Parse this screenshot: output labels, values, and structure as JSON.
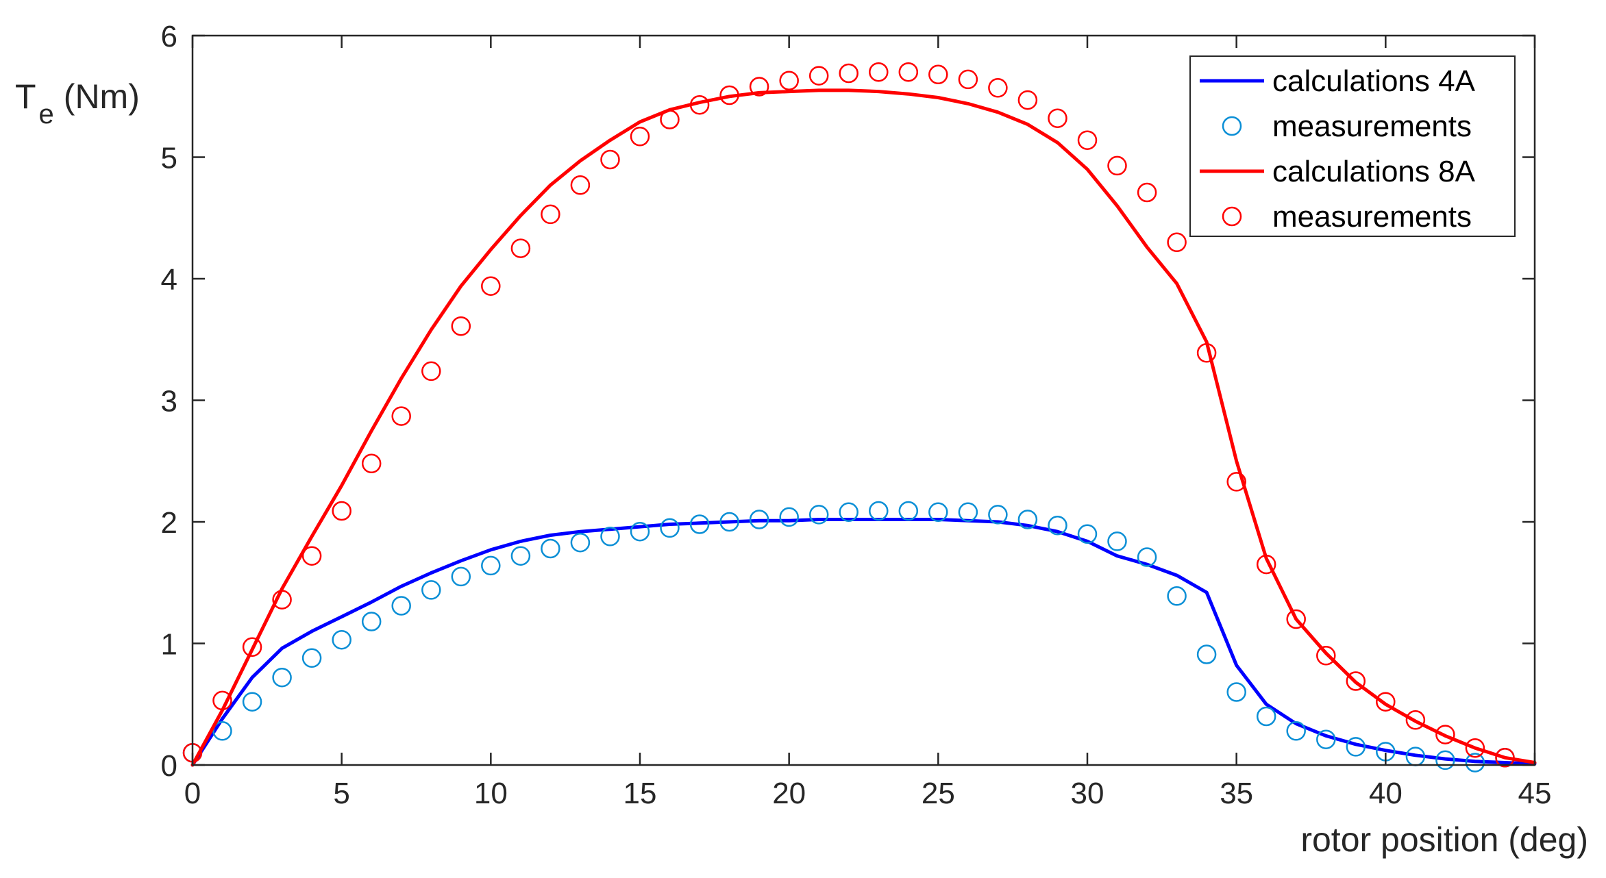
{
  "chart_data": {
    "type": "line",
    "xlabel": "rotor position (deg)",
    "ylabel_main": "T",
    "ylabel_sub": "e",
    "ylabel_unit": "(Nm)",
    "xlim": [
      0,
      45
    ],
    "ylim": [
      0,
      6
    ],
    "xticks": [
      0,
      5,
      10,
      15,
      20,
      25,
      30,
      35,
      40,
      45
    ],
    "yticks": [
      0,
      1,
      2,
      3,
      4,
      5,
      6
    ],
    "grid": false,
    "legend_position": "top-right",
    "series": [
      {
        "name": "calculations 4A",
        "style": "line",
        "color": "#0000ff",
        "x": [
          0,
          1,
          2,
          3,
          4,
          5,
          6,
          7,
          8,
          9,
          10,
          11,
          12,
          13,
          14,
          15,
          16,
          17,
          18,
          19,
          20,
          21,
          22,
          23,
          24,
          25,
          26,
          27,
          28,
          29,
          30,
          31,
          32,
          33,
          34,
          35,
          36,
          37,
          38,
          39,
          40,
          41,
          42,
          43,
          44,
          45
        ],
        "y": [
          0.0,
          0.38,
          0.72,
          0.96,
          1.1,
          1.22,
          1.34,
          1.47,
          1.58,
          1.68,
          1.77,
          1.84,
          1.89,
          1.92,
          1.94,
          1.96,
          1.98,
          1.99,
          2.0,
          2.01,
          2.01,
          2.02,
          2.02,
          2.02,
          2.02,
          2.02,
          2.01,
          2.0,
          1.97,
          1.92,
          1.84,
          1.72,
          1.65,
          1.56,
          1.42,
          0.82,
          0.5,
          0.34,
          0.24,
          0.17,
          0.12,
          0.08,
          0.05,
          0.03,
          0.02,
          0.01
        ]
      },
      {
        "name": "measurements",
        "style": "markers",
        "color": "#0b8fd6",
        "x": [
          0,
          1,
          2,
          3,
          4,
          5,
          6,
          7,
          8,
          9,
          10,
          11,
          12,
          13,
          14,
          15,
          16,
          17,
          18,
          19,
          20,
          21,
          22,
          23,
          24,
          25,
          26,
          27,
          28,
          29,
          30,
          31,
          32,
          33,
          34,
          35,
          36,
          37,
          38,
          39,
          40,
          41,
          42,
          43,
          44
        ],
        "y": [
          0.1,
          0.28,
          0.52,
          0.72,
          0.88,
          1.03,
          1.18,
          1.31,
          1.44,
          1.55,
          1.64,
          1.72,
          1.78,
          1.83,
          1.88,
          1.92,
          1.95,
          1.98,
          2.0,
          2.02,
          2.04,
          2.06,
          2.08,
          2.09,
          2.09,
          2.08,
          2.08,
          2.06,
          2.02,
          1.97,
          1.9,
          1.84,
          1.71,
          1.39,
          0.91,
          0.6,
          0.4,
          0.28,
          0.21,
          0.15,
          0.11,
          0.07,
          0.04,
          0.02,
          0.06
        ]
      },
      {
        "name": "calculations 8A",
        "style": "line",
        "color": "#ff0000",
        "x": [
          0,
          1,
          2,
          3,
          4,
          5,
          6,
          7,
          8,
          9,
          10,
          11,
          12,
          13,
          14,
          15,
          16,
          17,
          18,
          19,
          20,
          21,
          22,
          23,
          24,
          25,
          26,
          27,
          28,
          29,
          30,
          31,
          32,
          33,
          34,
          35,
          36,
          37,
          38,
          39,
          40,
          41,
          42,
          43,
          44,
          45
        ],
        "y": [
          0.0,
          0.45,
          0.95,
          1.45,
          1.88,
          2.3,
          2.75,
          3.18,
          3.58,
          3.94,
          4.24,
          4.52,
          4.77,
          4.97,
          5.14,
          5.29,
          5.39,
          5.45,
          5.5,
          5.53,
          5.54,
          5.55,
          5.55,
          5.54,
          5.52,
          5.49,
          5.44,
          5.37,
          5.27,
          5.12,
          4.9,
          4.6,
          4.26,
          3.96,
          3.48,
          2.5,
          1.7,
          1.2,
          0.92,
          0.68,
          0.5,
          0.36,
          0.24,
          0.14,
          0.06,
          0.02
        ]
      },
      {
        "name": "measurements",
        "style": "markers",
        "color": "#ff0000",
        "x": [
          0,
          1,
          2,
          3,
          4,
          5,
          6,
          7,
          8,
          9,
          10,
          11,
          12,
          13,
          14,
          15,
          16,
          17,
          18,
          19,
          20,
          21,
          22,
          23,
          24,
          25,
          26,
          27,
          28,
          29,
          30,
          31,
          32,
          33,
          34,
          35,
          36,
          37,
          38,
          39,
          40,
          41,
          42,
          43,
          44
        ],
        "y": [
          0.1,
          0.53,
          0.97,
          1.36,
          1.72,
          2.09,
          2.48,
          2.87,
          3.24,
          3.61,
          3.94,
          4.25,
          4.53,
          4.77,
          4.98,
          5.17,
          5.31,
          5.43,
          5.51,
          5.58,
          5.63,
          5.67,
          5.69,
          5.7,
          5.7,
          5.68,
          5.64,
          5.57,
          5.47,
          5.32,
          5.14,
          4.93,
          4.71,
          4.3,
          3.39,
          2.33,
          1.65,
          1.2,
          0.9,
          0.69,
          0.52,
          0.37,
          0.25,
          0.14,
          0.06
        ]
      }
    ]
  }
}
